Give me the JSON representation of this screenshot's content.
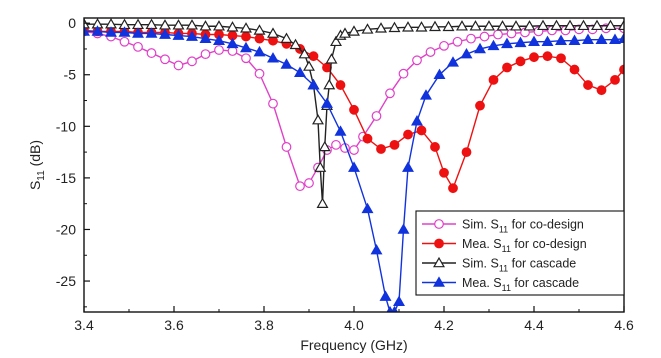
{
  "chart_data": {
    "type": "line",
    "xlabel": "Frequency (GHz)",
    "ylabel": "S11 (dB)",
    "ylabel_main": "S",
    "ylabel_sub": "11",
    "ylabel_rest": " (dB)",
    "xlim": [
      3.4,
      4.6
    ],
    "ylim": [
      -28,
      0.5
    ],
    "xticks": [
      3.4,
      3.6,
      3.8,
      4.0,
      4.2,
      4.4,
      4.6
    ],
    "xtick_labels": [
      "3.4",
      "3.6",
      "3.8",
      "4.0",
      "4.2",
      "4.4",
      "4.6"
    ],
    "yticks": [
      0,
      -5,
      -10,
      -15,
      -20,
      -25
    ],
    "ytick_labels": [
      "0",
      "-5",
      "-10",
      "-15",
      "-20",
      "-25"
    ],
    "grid": false,
    "legend_position": "bottom-right",
    "series": [
      {
        "name_main": "Sim. S",
        "name_sub": "11",
        "name_rest": " for co-design",
        "color": "#e040c8",
        "marker": "circle-open",
        "x": [
          3.4,
          3.43,
          3.46,
          3.49,
          3.52,
          3.55,
          3.58,
          3.61,
          3.64,
          3.67,
          3.7,
          3.73,
          3.76,
          3.79,
          3.82,
          3.85,
          3.88,
          3.9,
          3.92,
          3.94,
          3.96,
          3.98,
          4.0,
          4.02,
          4.05,
          4.08,
          4.11,
          4.14,
          4.17,
          4.2,
          4.23,
          4.26,
          4.29,
          4.32,
          4.35,
          4.38,
          4.41,
          4.44,
          4.47,
          4.5,
          4.53,
          4.56,
          4.6
        ],
        "y": [
          -0.8,
          -1.0,
          -1.3,
          -1.8,
          -2.3,
          -2.9,
          -3.5,
          -4.1,
          -3.7,
          -3.0,
          -2.6,
          -2.7,
          -3.4,
          -4.9,
          -7.8,
          -12.0,
          -15.8,
          -15.5,
          -14.0,
          -12.3,
          -11.8,
          -12.1,
          -12.3,
          -11.0,
          -9.0,
          -6.8,
          -4.9,
          -3.6,
          -2.8,
          -2.2,
          -1.8,
          -1.5,
          -1.3,
          -1.1,
          -1.0,
          -0.9,
          -0.8,
          -0.7,
          -0.7,
          -0.6,
          -0.6,
          -0.5,
          -0.5
        ]
      },
      {
        "name_main": "Mea. S",
        "name_sub": "11",
        "name_rest": " for co-design",
        "color": "#ee1111",
        "marker": "circle-filled",
        "x": [
          3.4,
          3.43,
          3.46,
          3.49,
          3.52,
          3.55,
          3.58,
          3.61,
          3.64,
          3.67,
          3.7,
          3.73,
          3.76,
          3.79,
          3.82,
          3.85,
          3.88,
          3.91,
          3.94,
          3.97,
          4.0,
          4.03,
          4.06,
          4.09,
          4.12,
          4.15,
          4.18,
          4.2,
          4.22,
          4.25,
          4.28,
          4.31,
          4.34,
          4.37,
          4.4,
          4.43,
          4.46,
          4.49,
          4.52,
          4.55,
          4.58,
          4.6
        ],
        "y": [
          -0.7,
          -0.8,
          -0.8,
          -0.8,
          -0.9,
          -0.9,
          -0.9,
          -1.0,
          -1.0,
          -1.1,
          -1.1,
          -1.2,
          -1.3,
          -1.5,
          -1.7,
          -2.0,
          -2.5,
          -3.2,
          -4.3,
          -6.0,
          -8.4,
          -11.2,
          -12.2,
          -11.8,
          -10.8,
          -10.4,
          -12.0,
          -14.5,
          -16.0,
          -12.5,
          -8.0,
          -5.5,
          -4.3,
          -3.7,
          -3.3,
          -3.2,
          -3.4,
          -4.5,
          -6.0,
          -6.5,
          -5.5,
          -4.5
        ]
      },
      {
        "name_main": "Sim. S",
        "name_sub": "11",
        "name_rest": " for cascade",
        "color": "#222222",
        "marker": "triangle-open",
        "x": [
          3.4,
          3.43,
          3.46,
          3.49,
          3.52,
          3.55,
          3.58,
          3.61,
          3.64,
          3.67,
          3.7,
          3.73,
          3.76,
          3.79,
          3.82,
          3.85,
          3.87,
          3.89,
          3.9,
          3.91,
          3.92,
          3.925,
          3.93,
          3.935,
          3.94,
          3.945,
          3.95,
          3.96,
          3.97,
          3.98,
          4.0,
          4.03,
          4.06,
          4.09,
          4.12,
          4.15,
          4.18,
          4.21,
          4.24,
          4.27,
          4.3,
          4.33,
          4.36,
          4.39,
          4.42,
          4.45,
          4.48,
          4.51,
          4.54,
          4.57,
          4.6
        ],
        "y": [
          -0.1,
          -0.1,
          -0.1,
          -0.15,
          -0.15,
          -0.15,
          -0.2,
          -0.2,
          -0.2,
          -0.3,
          -0.3,
          -0.4,
          -0.5,
          -0.7,
          -1.0,
          -1.5,
          -2.1,
          -3.0,
          -4.2,
          -6.0,
          -9.4,
          -14.0,
          -17.5,
          -12.0,
          -8.0,
          -6.0,
          -3.5,
          -1.8,
          -1.2,
          -1.0,
          -0.8,
          -0.6,
          -0.5,
          -0.45,
          -0.4,
          -0.4,
          -0.35,
          -0.35,
          -0.3,
          -0.3,
          -0.3,
          -0.3,
          -0.3,
          -0.3,
          -0.25,
          -0.25,
          -0.25,
          -0.25,
          -0.25,
          -0.25,
          -0.25
        ]
      },
      {
        "name_main": "Mea. S",
        "name_sub": "11",
        "name_rest": " for cascade",
        "color": "#1133dd",
        "marker": "triangle-filled",
        "x": [
          3.4,
          3.43,
          3.46,
          3.49,
          3.52,
          3.55,
          3.58,
          3.61,
          3.64,
          3.67,
          3.7,
          3.73,
          3.76,
          3.79,
          3.82,
          3.85,
          3.88,
          3.91,
          3.94,
          3.97,
          4.0,
          4.03,
          4.05,
          4.07,
          4.08,
          4.09,
          4.1,
          4.11,
          4.12,
          4.14,
          4.16,
          4.19,
          4.22,
          4.25,
          4.28,
          4.31,
          4.34,
          4.37,
          4.4,
          4.43,
          4.46,
          4.49,
          4.52,
          4.55,
          4.58,
          4.6
        ],
        "y": [
          -0.8,
          -0.8,
          -0.9,
          -0.9,
          -1.0,
          -1.0,
          -1.1,
          -1.2,
          -1.3,
          -1.5,
          -1.7,
          -2.0,
          -2.4,
          -2.8,
          -3.4,
          -4.0,
          -4.8,
          -6.0,
          -7.8,
          -10.5,
          -14.0,
          -18.0,
          -22.0,
          -26.5,
          -28.0,
          -28.0,
          -27.0,
          -20.0,
          -14.0,
          -9.5,
          -7.0,
          -5.0,
          -3.8,
          -3.0,
          -2.5,
          -2.2,
          -2.0,
          -1.9,
          -1.8,
          -1.8,
          -1.7,
          -1.7,
          -1.6,
          -1.6,
          -1.6,
          -1.5
        ]
      }
    ]
  }
}
